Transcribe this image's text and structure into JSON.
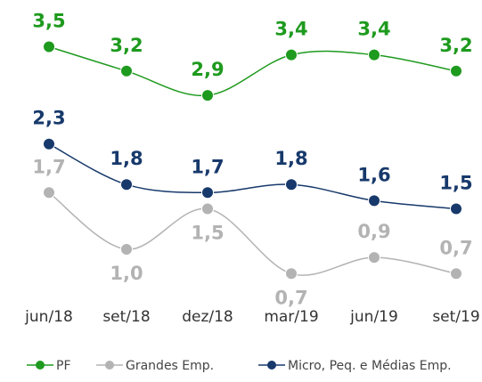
{
  "chart_data": {
    "type": "line",
    "categories": [
      "jun/18",
      "set/18",
      "dez/18",
      "mar/19",
      "jun/19",
      "set/19"
    ],
    "series": [
      {
        "name": "PF",
        "color": "#1e9a1e",
        "values": [
          3.5,
          3.2,
          2.9,
          3.4,
          3.4,
          3.2
        ],
        "value_labels": [
          "3,5",
          "3,2",
          "2,9",
          "3,4",
          "3,4",
          "3,2"
        ]
      },
      {
        "name": "Grandes Emp.",
        "color": "#b3b3b3",
        "values": [
          1.7,
          1.0,
          1.5,
          0.7,
          0.9,
          0.7
        ],
        "value_labels": [
          "1,7",
          "1,0",
          "1,5",
          "0,7",
          "0,9",
          "0,7"
        ]
      },
      {
        "name": "Micro, Peq. e Médias Emp.",
        "color": "#17396b",
        "values": [
          2.3,
          1.8,
          1.7,
          1.8,
          1.6,
          1.5
        ],
        "value_labels": [
          "2,3",
          "1,8",
          "1,7",
          "1,8",
          "1,6",
          "1,5"
        ]
      }
    ],
    "ylim": [
      0,
      4
    ]
  }
}
